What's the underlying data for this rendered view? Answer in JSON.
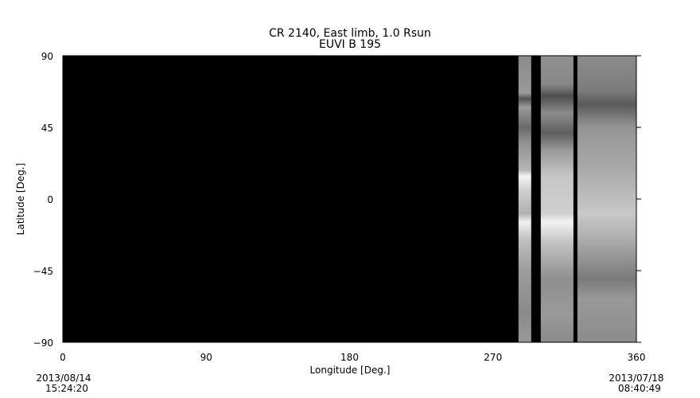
{
  "chart_data": {
    "type": "heatmap",
    "title": "CR 2140, East limb, 1.0 Rsun",
    "subtitle": "EUVI B 195",
    "xlabel": "Longitude [Deg.]",
    "ylabel": "Latitude [Deg.]",
    "xlim": [
      0,
      360
    ],
    "ylim": [
      -90,
      90
    ],
    "xticks": [
      "0",
      "90",
      "180",
      "270",
      "360"
    ],
    "yticks": [
      "90",
      "45",
      "0",
      "−45",
      "−90"
    ],
    "xtick_values": [
      0,
      90,
      180,
      270,
      360
    ],
    "ytick_values": [
      90,
      45,
      0,
      -45,
      -90
    ],
    "colormap": "grayscale",
    "background_color": "#000000",
    "data_strips_longitude": [
      [
        286,
        294
      ],
      [
        300,
        320.5
      ],
      [
        323,
        360
      ]
    ],
    "gap_strips_longitude": [
      [
        0,
        286
      ],
      [
        294,
        300
      ],
      [
        320.5,
        323
      ]
    ],
    "start_date": "2013/08/14",
    "start_time": "15:24:20",
    "end_date": "2013/07/18",
    "end_time": "08:40:49"
  }
}
